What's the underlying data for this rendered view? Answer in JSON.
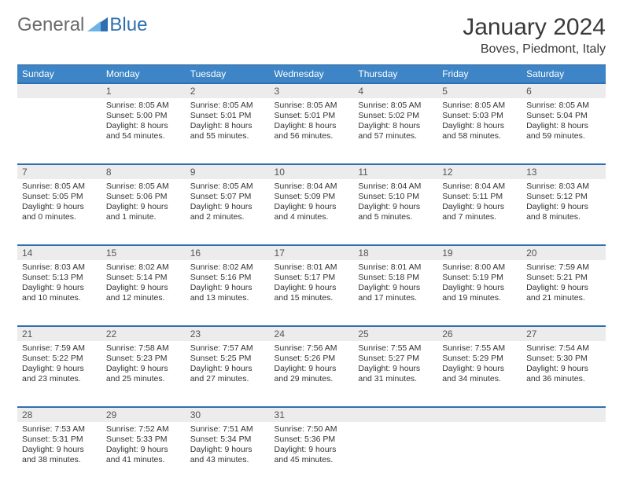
{
  "brand": {
    "part1": "General",
    "part2": "Blue"
  },
  "title": "January 2024",
  "location": "Boves, Piedmont, Italy",
  "colors": {
    "header_bg": "#3d85c6",
    "header_text": "#ffffff",
    "daynum_bg": "#ececec",
    "rule": "#2f6fb0",
    "logo_gray": "#6a6a6a",
    "logo_blue": "#2f6fb0"
  },
  "dow": [
    "Sunday",
    "Monday",
    "Tuesday",
    "Wednesday",
    "Thursday",
    "Friday",
    "Saturday"
  ],
  "weeks": [
    [
      null,
      {
        "n": "1",
        "r": "8:05 AM",
        "s": "5:00 PM",
        "d": "8 hours and 54 minutes."
      },
      {
        "n": "2",
        "r": "8:05 AM",
        "s": "5:01 PM",
        "d": "8 hours and 55 minutes."
      },
      {
        "n": "3",
        "r": "8:05 AM",
        "s": "5:01 PM",
        "d": "8 hours and 56 minutes."
      },
      {
        "n": "4",
        "r": "8:05 AM",
        "s": "5:02 PM",
        "d": "8 hours and 57 minutes."
      },
      {
        "n": "5",
        "r": "8:05 AM",
        "s": "5:03 PM",
        "d": "8 hours and 58 minutes."
      },
      {
        "n": "6",
        "r": "8:05 AM",
        "s": "5:04 PM",
        "d": "8 hours and 59 minutes."
      }
    ],
    [
      {
        "n": "7",
        "r": "8:05 AM",
        "s": "5:05 PM",
        "d": "9 hours and 0 minutes."
      },
      {
        "n": "8",
        "r": "8:05 AM",
        "s": "5:06 PM",
        "d": "9 hours and 1 minute."
      },
      {
        "n": "9",
        "r": "8:05 AM",
        "s": "5:07 PM",
        "d": "9 hours and 2 minutes."
      },
      {
        "n": "10",
        "r": "8:04 AM",
        "s": "5:09 PM",
        "d": "9 hours and 4 minutes."
      },
      {
        "n": "11",
        "r": "8:04 AM",
        "s": "5:10 PM",
        "d": "9 hours and 5 minutes."
      },
      {
        "n": "12",
        "r": "8:04 AM",
        "s": "5:11 PM",
        "d": "9 hours and 7 minutes."
      },
      {
        "n": "13",
        "r": "8:03 AM",
        "s": "5:12 PM",
        "d": "9 hours and 8 minutes."
      }
    ],
    [
      {
        "n": "14",
        "r": "8:03 AM",
        "s": "5:13 PM",
        "d": "9 hours and 10 minutes."
      },
      {
        "n": "15",
        "r": "8:02 AM",
        "s": "5:14 PM",
        "d": "9 hours and 12 minutes."
      },
      {
        "n": "16",
        "r": "8:02 AM",
        "s": "5:16 PM",
        "d": "9 hours and 13 minutes."
      },
      {
        "n": "17",
        "r": "8:01 AM",
        "s": "5:17 PM",
        "d": "9 hours and 15 minutes."
      },
      {
        "n": "18",
        "r": "8:01 AM",
        "s": "5:18 PM",
        "d": "9 hours and 17 minutes."
      },
      {
        "n": "19",
        "r": "8:00 AM",
        "s": "5:19 PM",
        "d": "9 hours and 19 minutes."
      },
      {
        "n": "20",
        "r": "7:59 AM",
        "s": "5:21 PM",
        "d": "9 hours and 21 minutes."
      }
    ],
    [
      {
        "n": "21",
        "r": "7:59 AM",
        "s": "5:22 PM",
        "d": "9 hours and 23 minutes."
      },
      {
        "n": "22",
        "r": "7:58 AM",
        "s": "5:23 PM",
        "d": "9 hours and 25 minutes."
      },
      {
        "n": "23",
        "r": "7:57 AM",
        "s": "5:25 PM",
        "d": "9 hours and 27 minutes."
      },
      {
        "n": "24",
        "r": "7:56 AM",
        "s": "5:26 PM",
        "d": "9 hours and 29 minutes."
      },
      {
        "n": "25",
        "r": "7:55 AM",
        "s": "5:27 PM",
        "d": "9 hours and 31 minutes."
      },
      {
        "n": "26",
        "r": "7:55 AM",
        "s": "5:29 PM",
        "d": "9 hours and 34 minutes."
      },
      {
        "n": "27",
        "r": "7:54 AM",
        "s": "5:30 PM",
        "d": "9 hours and 36 minutes."
      }
    ],
    [
      {
        "n": "28",
        "r": "7:53 AM",
        "s": "5:31 PM",
        "d": "9 hours and 38 minutes."
      },
      {
        "n": "29",
        "r": "7:52 AM",
        "s": "5:33 PM",
        "d": "9 hours and 41 minutes."
      },
      {
        "n": "30",
        "r": "7:51 AM",
        "s": "5:34 PM",
        "d": "9 hours and 43 minutes."
      },
      {
        "n": "31",
        "r": "7:50 AM",
        "s": "5:36 PM",
        "d": "9 hours and 45 minutes."
      },
      null,
      null,
      null
    ]
  ],
  "labels": {
    "sunrise": "Sunrise: ",
    "sunset": "Sunset: ",
    "daylight": "Daylight: "
  }
}
